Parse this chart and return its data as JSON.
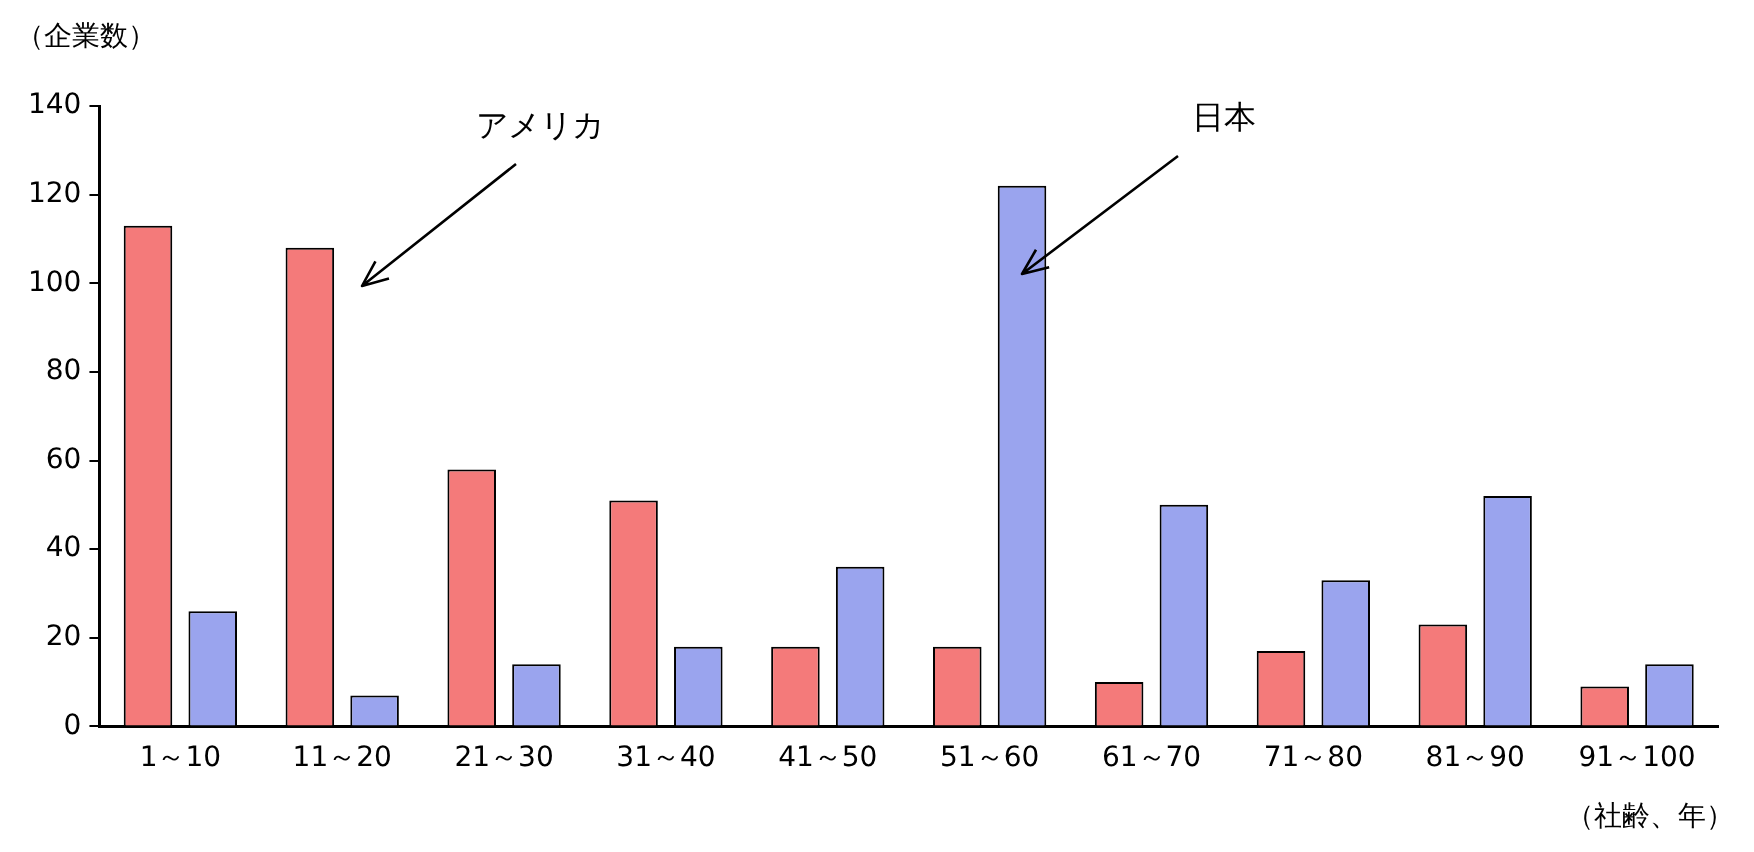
{
  "chart_data": {
    "type": "bar",
    "ylabel": "（企業数）",
    "xlabel": "（社齢、年）",
    "categories": [
      "1～10",
      "11～20",
      "21～30",
      "31～40",
      "41～50",
      "51～60",
      "61～70",
      "71～80",
      "81～90",
      "91～100"
    ],
    "series": [
      {
        "color": "#f47a7a",
        "values": [
          113,
          108,
          58,
          51,
          18,
          18,
          10,
          17,
          23,
          9
        ]
      },
      {
        "color": "#9aa4ee",
        "values": [
          26,
          7,
          14,
          18,
          36,
          122,
          50,
          33,
          52,
          14
        ]
      }
    ],
    "ylim": [
      0,
      140
    ],
    "yticks": [
      0,
      20,
      40,
      60,
      80,
      100,
      120,
      140
    ],
    "grid": false,
    "legend": false,
    "annotations": [
      "アメリカ",
      "日本"
    ]
  }
}
